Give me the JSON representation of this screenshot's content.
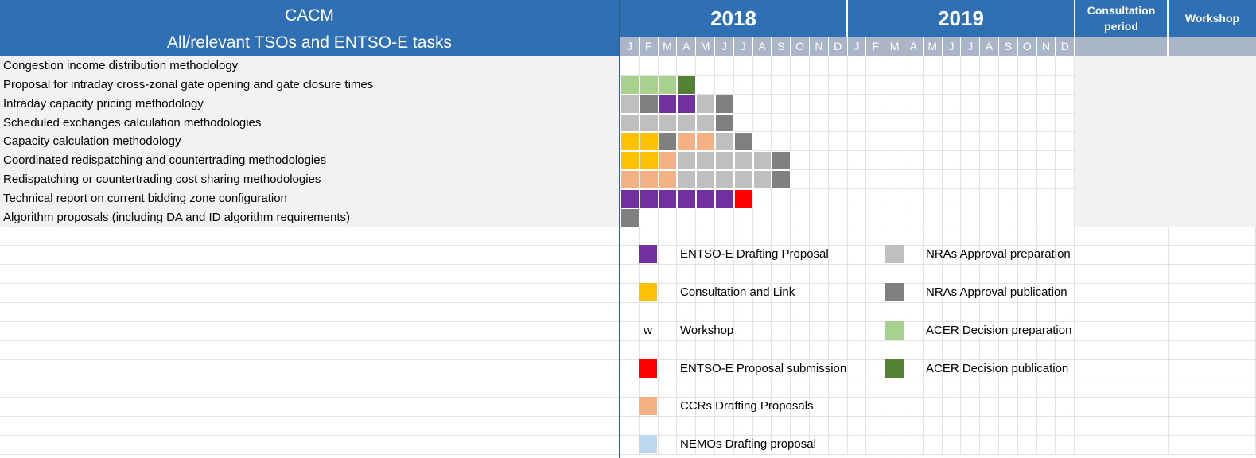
{
  "header": {
    "title_line1": "CACM",
    "title_line2": "All/relevant TSOs and ENTSO-E tasks",
    "years": [
      "2018",
      "2019"
    ],
    "consultation": "Consultation period",
    "workshop": "Workshop"
  },
  "months": [
    "J",
    "F",
    "M",
    "A",
    "M",
    "J",
    "J",
    "A",
    "S",
    "O",
    "N",
    "D",
    "J",
    "F",
    "M",
    "A",
    "M",
    "J",
    "J",
    "A",
    "S",
    "O",
    "N",
    "D"
  ],
  "tasks": [
    {
      "label": "Congestion income distribution methodology",
      "cells": []
    },
    {
      "label": "Proposal for intraday cross-zonal gate opening and gate closure times",
      "cells": [
        "acer_prep",
        "acer_prep",
        "acer_prep",
        "acer_pub"
      ]
    },
    {
      "label": "Intraday capacity pricing methodology",
      "cells": [
        "nra_prep",
        "nra_pub",
        "entsoe_draft",
        "entsoe_draft",
        "nra_prep",
        "nra_pub"
      ]
    },
    {
      "label": "Scheduled exchanges calculation methodologies",
      "cells": [
        "nra_prep",
        "nra_prep",
        "nra_prep",
        "nra_prep",
        "nra_prep",
        "nra_pub"
      ]
    },
    {
      "label": "Capacity calculation methodology",
      "cells": [
        "consult",
        "consult",
        "nra_pub",
        "ccr_draft",
        "ccr_draft",
        "nra_prep",
        "nra_pub"
      ]
    },
    {
      "label": "Coordinated redispatching and countertrading methodologies",
      "cells": [
        "consult",
        "consult",
        "ccr_draft",
        "nra_prep",
        "nra_prep",
        "nra_prep",
        "nra_prep",
        "nra_prep",
        "nra_pub"
      ]
    },
    {
      "label": "Redispatching or countertrading cost sharing methodologies",
      "cells": [
        "ccr_draft",
        "ccr_draft",
        "ccr_draft",
        "nra_prep",
        "nra_prep",
        "nra_prep",
        "nra_prep",
        "nra_prep",
        "nra_pub"
      ]
    },
    {
      "label": "Technical report on current bidding zone configuration",
      "cells": [
        "entsoe_draft",
        "entsoe_draft",
        "entsoe_draft",
        "entsoe_draft",
        "entsoe_draft",
        "entsoe_draft",
        "submission"
      ]
    },
    {
      "label": "Algorithm proposals (including DA and ID algorithm requirements)",
      "cells": [
        "nra_pub"
      ]
    }
  ],
  "colors": {
    "entsoe_draft": "#7030a0",
    "consult": "#ffc000",
    "submission": "#ff0000",
    "ccr_draft": "#f4b183",
    "nemo_draft": "#bdd7ee",
    "nra_prep": "#bfbfbf",
    "nra_pub": "#808080",
    "acer_prep": "#a9d18e",
    "acer_pub": "#548235"
  },
  "legend": [
    {
      "key": "entsoe_draft",
      "label": "ENTSO-E Drafting Proposal",
      "icon": "purple-swatch"
    },
    {
      "key": "consult",
      "label": "Consultation and Link",
      "icon": "yellow-swatch"
    },
    {
      "key": "workshop",
      "label": "Workshop",
      "mark": "w"
    },
    {
      "key": "submission",
      "label": "ENTSO-E Proposal submission",
      "icon": "red-swatch"
    },
    {
      "key": "ccr_draft",
      "label": "CCRs Drafting Proposals",
      "icon": "salmon-swatch"
    },
    {
      "key": "nemo_draft",
      "label": "NEMOs Drafting proposal",
      "icon": "light-blue-swatch"
    },
    {
      "key": "nra_prep",
      "label": "NRAs Approval preparation",
      "icon": "light-grey-swatch"
    },
    {
      "key": "nra_pub",
      "label": "NRAs Approval publication",
      "icon": "dark-grey-swatch"
    },
    {
      "key": "acer_prep",
      "label": "ACER Decision preparation",
      "icon": "light-green-swatch"
    },
    {
      "key": "acer_pub",
      "label": "ACER Decision publication",
      "icon": "dark-green-swatch"
    }
  ]
}
